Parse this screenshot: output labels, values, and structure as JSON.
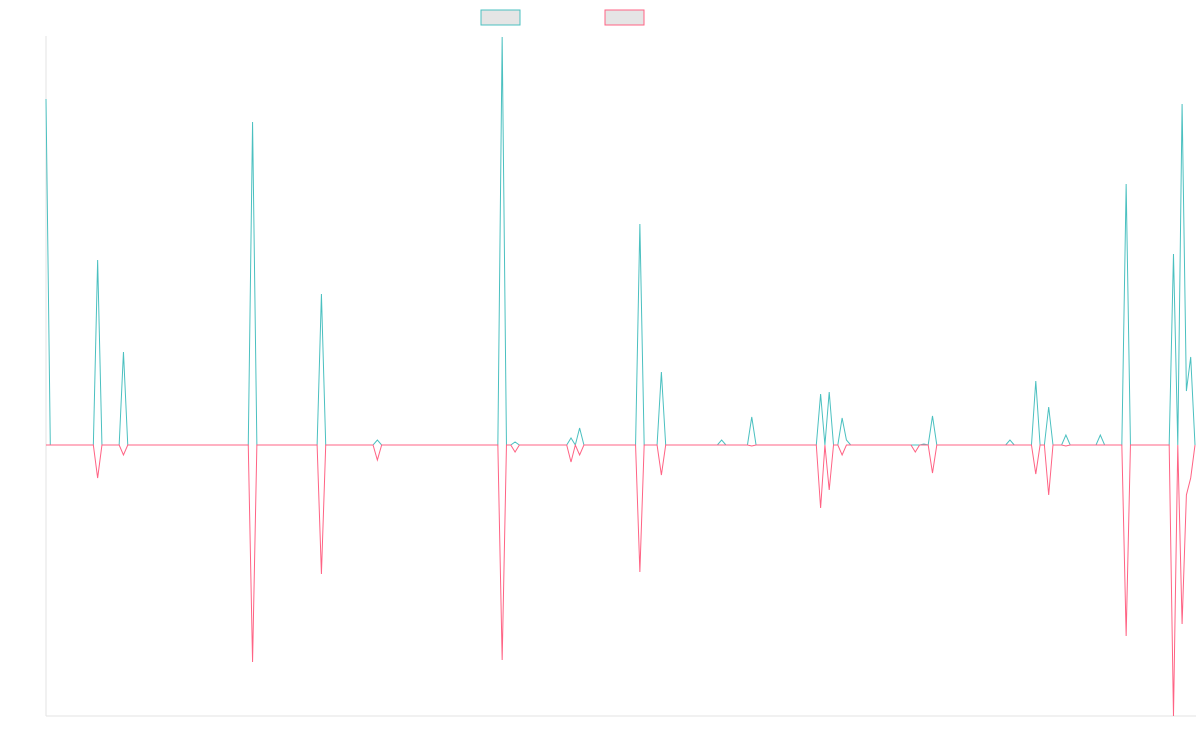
{
  "chart_data": {
    "type": "line",
    "title": "",
    "xlabel": "",
    "ylabel": "",
    "n_points": 268,
    "ylim": [
      -2.71,
      4.09
    ],
    "grid": false,
    "legend_position": "top-center",
    "series": [
      {
        "name": "",
        "color": "#4bc0c0",
        "nonzero": [
          [
            0,
            3.46
          ],
          [
            12,
            1.85
          ],
          [
            18,
            0.93
          ],
          [
            48,
            3.23
          ],
          [
            64,
            1.51
          ],
          [
            77,
            0.05
          ],
          [
            106,
            4.08
          ],
          [
            109,
            0.03
          ],
          [
            122,
            0.07
          ],
          [
            124,
            0.17
          ],
          [
            138,
            2.21
          ],
          [
            143,
            0.73
          ],
          [
            157,
            0.05
          ],
          [
            164,
            0.28
          ],
          [
            180,
            0.51
          ],
          [
            182,
            0.53
          ],
          [
            185,
            0.27
          ],
          [
            186,
            0.05
          ],
          [
            202,
            0.0
          ],
          [
            204,
            0.01
          ],
          [
            206,
            0.29
          ],
          [
            224,
            0.05
          ],
          [
            230,
            0.64
          ],
          [
            233,
            0.38
          ],
          [
            237,
            0.1
          ],
          [
            245,
            0.1
          ],
          [
            251,
            2.61
          ],
          [
            262,
            1.91
          ],
          [
            264,
            3.41
          ],
          [
            265,
            0.54
          ],
          [
            266,
            0.88
          ]
        ]
      },
      {
        "name": "",
        "color": "#ff6384",
        "nonzero": [
          [
            12,
            -0.33
          ],
          [
            18,
            -0.1
          ],
          [
            48,
            -2.17
          ],
          [
            64,
            -1.29
          ],
          [
            77,
            -0.15
          ],
          [
            106,
            -2.15
          ],
          [
            109,
            -0.07
          ],
          [
            122,
            -0.17
          ],
          [
            124,
            -0.1
          ],
          [
            138,
            -1.27
          ],
          [
            143,
            -0.3
          ],
          [
            164,
            -0.01
          ],
          [
            180,
            -0.63
          ],
          [
            182,
            -0.45
          ],
          [
            185,
            -0.1
          ],
          [
            202,
            -0.07
          ],
          [
            206,
            -0.28
          ],
          [
            230,
            -0.29
          ],
          [
            233,
            -0.5
          ],
          [
            237,
            -0.01
          ],
          [
            251,
            -1.91
          ],
          [
            262,
            -2.71
          ],
          [
            264,
            -1.79
          ],
          [
            265,
            -0.5
          ],
          [
            266,
            -0.33
          ]
        ]
      }
    ]
  }
}
